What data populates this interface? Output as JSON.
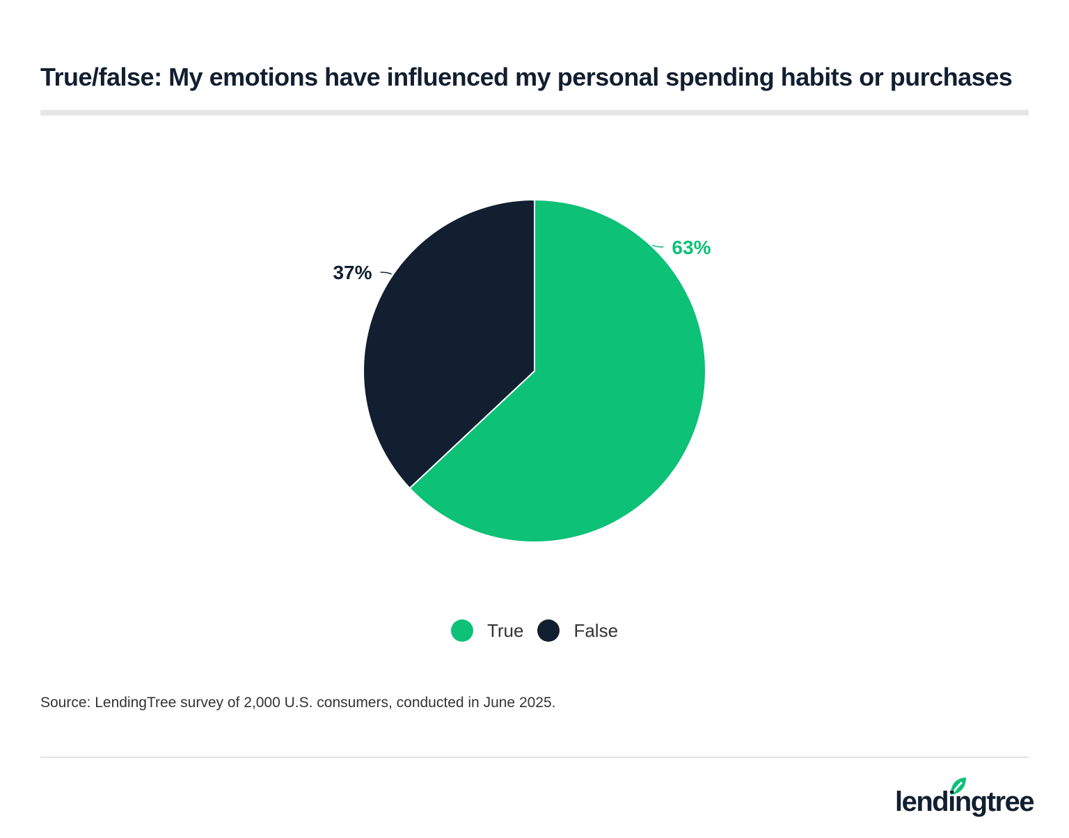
{
  "chart_data": {
    "type": "pie",
    "title": "True/false: My emotions have influenced my personal spending habits or purchases",
    "slices": [
      {
        "label": "True",
        "value": 63,
        "display": "63%",
        "color": "#0dc177"
      },
      {
        "label": "False",
        "value": 37,
        "display": "37%",
        "color": "#111f30"
      }
    ],
    "start_angle": "12 o'clock, clockwise",
    "legend_position": "bottom"
  },
  "source": "Source: LendingTree survey of 2,000 U.S. consumers, conducted in June 2025.",
  "logo": {
    "text": "lendingtree",
    "color": "#111f30",
    "leaf_color": "#0dc177"
  }
}
